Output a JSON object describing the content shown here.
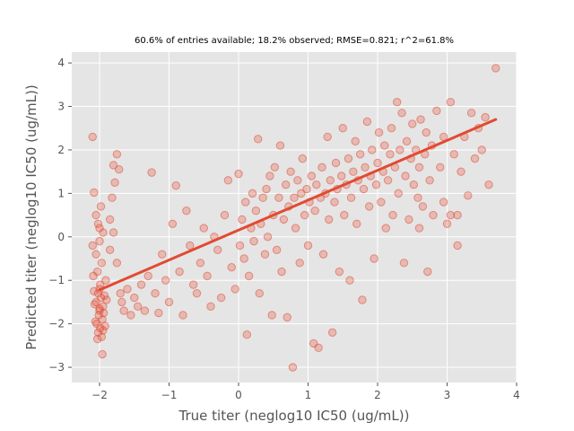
{
  "chart_data": {
    "type": "scatter",
    "title": "60.6% of entries available; 18.2% observed; RMSE=0.821; r^2=61.8%",
    "xlabel": "True titer (neglog10 IC50 (ug/mL))",
    "ylabel": "Predicted titer (neglog10 IC50 (ug/mL))",
    "xlim": [
      -2.4,
      4.0
    ],
    "ylim": [
      -3.35,
      4.25
    ],
    "xticks": [
      -2,
      -1,
      0,
      1,
      2,
      3,
      4
    ],
    "yticks": [
      -3,
      -2,
      -1,
      0,
      1,
      2,
      3,
      4
    ],
    "xtick_labels": [
      "−2",
      "−1",
      "0",
      "1",
      "2",
      "3",
      "4"
    ],
    "ytick_labels": [
      "−3",
      "−2",
      "−1",
      "0",
      "1",
      "2",
      "3",
      "4"
    ],
    "grid": true,
    "legend": "none",
    "colors": {
      "points": "#E24A33",
      "background": "#E5E5E5",
      "grid": "#FFFFFF",
      "text": "#555555"
    },
    "trend_line": {
      "x": [
        -2.0,
        3.7
      ],
      "y": [
        -1.22,
        2.7
      ]
    },
    "points": [
      [
        -2.1,
        2.3
      ],
      [
        -2.08,
        1.02
      ],
      [
        -2.05,
        0.5
      ],
      [
        -2.02,
        0.3
      ],
      [
        -2.0,
        0.2
      ],
      [
        -1.98,
        0.7
      ],
      [
        -2.0,
        -0.1
      ],
      [
        -2.05,
        -0.4
      ],
      [
        -1.97,
        -0.6
      ],
      [
        -2.1,
        -0.2
      ],
      [
        -1.95,
        0.1
      ],
      [
        -2.03,
        -0.8
      ],
      [
        -2.0,
        -1.2
      ],
      [
        -2.02,
        -1.3
      ],
      [
        -1.98,
        -1.4
      ],
      [
        -2.05,
        -1.5
      ],
      [
        -1.95,
        -1.6
      ],
      [
        -2.0,
        -1.7
      ],
      [
        -2.01,
        -1.8
      ],
      [
        -1.96,
        -1.9
      ],
      [
        -2.04,
        -2.0
      ],
      [
        -1.99,
        -2.1
      ],
      [
        -2.02,
        -2.2
      ],
      [
        -1.97,
        -2.3
      ],
      [
        -1.93,
        -1.35
      ],
      [
        -2.07,
        -1.55
      ],
      [
        -1.94,
        -1.75
      ],
      [
        -2.06,
        -1.95
      ],
      [
        -1.92,
        -2.05
      ],
      [
        -2.08,
        -1.25
      ],
      [
        -1.9,
        -1.45
      ],
      [
        -2.0,
        -1.65
      ],
      [
        -1.95,
        -2.15
      ],
      [
        -2.03,
        -2.35
      ],
      [
        -1.96,
        -2.7
      ],
      [
        -1.99,
        -1.1
      ],
      [
        -1.91,
        -1.0
      ],
      [
        -2.09,
        -0.9
      ],
      [
        -1.85,
        0.4
      ],
      [
        -1.82,
        0.9
      ],
      [
        -1.8,
        1.65
      ],
      [
        -1.78,
        1.25
      ],
      [
        -1.75,
        1.9
      ],
      [
        -1.72,
        1.55
      ],
      [
        -1.8,
        0.1
      ],
      [
        -1.85,
        -0.3
      ],
      [
        -1.75,
        -0.6
      ],
      [
        -1.7,
        -1.3
      ],
      [
        -1.68,
        -1.5
      ],
      [
        -1.65,
        -1.7
      ],
      [
        -1.6,
        -1.2
      ],
      [
        -1.55,
        -1.8
      ],
      [
        -1.5,
        -1.4
      ],
      [
        -1.45,
        -1.6
      ],
      [
        -1.4,
        -1.1
      ],
      [
        -1.35,
        -1.7
      ],
      [
        -1.3,
        -0.9
      ],
      [
        -1.25,
        1.48
      ],
      [
        -1.2,
        -1.3
      ],
      [
        -1.15,
        -1.75
      ],
      [
        -1.1,
        -0.4
      ],
      [
        -1.05,
        -1.0
      ],
      [
        -1.0,
        -1.5
      ],
      [
        -0.95,
        0.3
      ],
      [
        -0.9,
        1.18
      ],
      [
        -0.85,
        -0.8
      ],
      [
        -0.8,
        -1.8
      ],
      [
        -0.75,
        0.6
      ],
      [
        -0.7,
        -0.2
      ],
      [
        -0.65,
        -1.1
      ],
      [
        -0.6,
        -1.3
      ],
      [
        -0.55,
        -0.6
      ],
      [
        -0.5,
        0.2
      ],
      [
        -0.45,
        -0.9
      ],
      [
        -0.4,
        -1.6
      ],
      [
        -0.35,
        0.0
      ],
      [
        -0.3,
        -0.3
      ],
      [
        -0.25,
        -1.4
      ],
      [
        -0.2,
        0.5
      ],
      [
        -0.15,
        1.3
      ],
      [
        -0.1,
        -0.7
      ],
      [
        -0.05,
        -1.2
      ],
      [
        0.0,
        1.45
      ],
      [
        0.02,
        -0.2
      ],
      [
        0.05,
        0.4
      ],
      [
        0.08,
        -0.5
      ],
      [
        0.1,
        0.8
      ],
      [
        0.12,
        -2.25
      ],
      [
        0.15,
        -0.9
      ],
      [
        0.18,
        0.2
      ],
      [
        0.2,
        1.0
      ],
      [
        0.22,
        -0.1
      ],
      [
        0.25,
        0.6
      ],
      [
        0.28,
        2.25
      ],
      [
        0.3,
        -1.3
      ],
      [
        0.32,
        0.3
      ],
      [
        0.35,
        0.9
      ],
      [
        0.38,
        -0.4
      ],
      [
        0.4,
        1.1
      ],
      [
        0.42,
        0.0
      ],
      [
        0.45,
        1.4
      ],
      [
        0.48,
        -1.8
      ],
      [
        0.5,
        0.5
      ],
      [
        0.52,
        1.6
      ],
      [
        0.55,
        -0.3
      ],
      [
        0.58,
        0.9
      ],
      [
        0.6,
        2.1
      ],
      [
        0.62,
        -0.8
      ],
      [
        0.65,
        0.4
      ],
      [
        0.68,
        1.2
      ],
      [
        0.7,
        -1.85
      ],
      [
        0.72,
        0.7
      ],
      [
        0.75,
        1.5
      ],
      [
        0.78,
        -3.0
      ],
      [
        0.8,
        0.9
      ],
      [
        0.82,
        0.2
      ],
      [
        0.85,
        1.3
      ],
      [
        0.88,
        -0.6
      ],
      [
        0.9,
        1.0
      ],
      [
        0.92,
        1.8
      ],
      [
        0.95,
        0.5
      ],
      [
        0.98,
        1.1
      ],
      [
        1.0,
        -0.2
      ],
      [
        1.02,
        0.8
      ],
      [
        1.05,
        1.4
      ],
      [
        1.08,
        -2.45
      ],
      [
        1.1,
        0.6
      ],
      [
        1.12,
        1.2
      ],
      [
        1.15,
        -2.55
      ],
      [
        1.18,
        0.9
      ],
      [
        1.2,
        1.6
      ],
      [
        1.22,
        -0.4
      ],
      [
        1.25,
        1.0
      ],
      [
        1.28,
        2.3
      ],
      [
        1.3,
        0.4
      ],
      [
        1.32,
        1.3
      ],
      [
        1.35,
        -2.2
      ],
      [
        1.38,
        0.8
      ],
      [
        1.4,
        1.7
      ],
      [
        1.42,
        1.1
      ],
      [
        1.45,
        -0.8
      ],
      [
        1.48,
        1.4
      ],
      [
        1.5,
        2.5
      ],
      [
        1.52,
        0.5
      ],
      [
        1.55,
        1.2
      ],
      [
        1.58,
        1.8
      ],
      [
        1.6,
        -1.0
      ],
      [
        1.62,
        0.9
      ],
      [
        1.65,
        1.5
      ],
      [
        1.68,
        2.2
      ],
      [
        1.7,
        0.3
      ],
      [
        1.72,
        1.3
      ],
      [
        1.75,
        1.9
      ],
      [
        1.78,
        -1.45
      ],
      [
        1.8,
        1.1
      ],
      [
        1.82,
        1.6
      ],
      [
        1.85,
        2.65
      ],
      [
        1.88,
        0.7
      ],
      [
        1.9,
        1.4
      ],
      [
        1.92,
        2.0
      ],
      [
        1.95,
        -0.5
      ],
      [
        1.98,
        1.2
      ],
      [
        2.0,
        1.7
      ],
      [
        2.02,
        2.4
      ],
      [
        2.05,
        0.8
      ],
      [
        2.08,
        1.5
      ],
      [
        2.1,
        2.1
      ],
      [
        2.12,
        0.2
      ],
      [
        2.15,
        1.3
      ],
      [
        2.18,
        1.9
      ],
      [
        2.2,
        2.5
      ],
      [
        2.22,
        0.5
      ],
      [
        2.25,
        1.6
      ],
      [
        2.28,
        3.1
      ],
      [
        2.3,
        1.0
      ],
      [
        2.32,
        2.0
      ],
      [
        2.35,
        2.85
      ],
      [
        2.38,
        -0.6
      ],
      [
        2.4,
        1.4
      ],
      [
        2.42,
        2.2
      ],
      [
        2.45,
        0.4
      ],
      [
        2.48,
        1.8
      ],
      [
        2.5,
        2.6
      ],
      [
        2.52,
        1.2
      ],
      [
        2.55,
        2.0
      ],
      [
        2.58,
        0.9
      ],
      [
        2.6,
        1.6
      ],
      [
        2.62,
        2.7
      ],
      [
        2.65,
        0.7
      ],
      [
        2.68,
        1.9
      ],
      [
        2.7,
        2.4
      ],
      [
        2.72,
        -0.8
      ],
      [
        2.75,
        1.3
      ],
      [
        2.78,
        2.1
      ],
      [
        2.8,
        0.5
      ],
      [
        2.85,
        2.9
      ],
      [
        2.9,
        1.6
      ],
      [
        2.95,
        2.3
      ],
      [
        3.0,
        0.3
      ],
      [
        3.05,
        3.1
      ],
      [
        3.1,
        1.9
      ],
      [
        3.15,
        0.5
      ],
      [
        3.2,
        1.5
      ],
      [
        3.25,
        2.3
      ],
      [
        3.3,
        0.95
      ],
      [
        3.35,
        2.85
      ],
      [
        3.4,
        1.8
      ],
      [
        3.5,
        2.0
      ],
      [
        3.55,
        2.75
      ],
      [
        3.7,
        3.88
      ],
      [
        3.6,
        1.2
      ],
      [
        3.45,
        2.5
      ],
      [
        2.95,
        0.8
      ],
      [
        3.05,
        0.5
      ],
      [
        3.15,
        -0.2
      ],
      [
        2.6,
        0.2
      ]
    ]
  }
}
